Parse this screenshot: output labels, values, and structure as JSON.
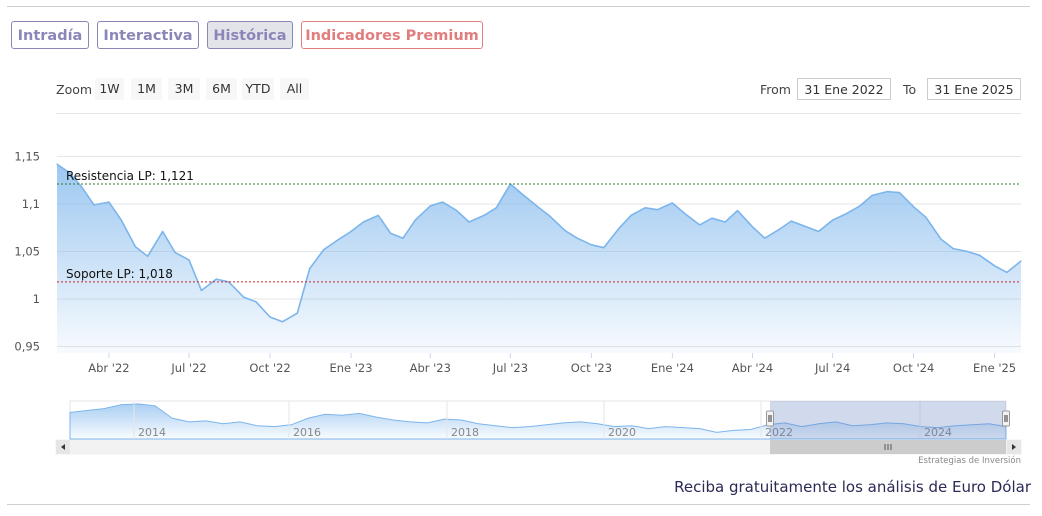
{
  "tabs": [
    {
      "label": "Intradía"
    },
    {
      "label": "Interactiva"
    },
    {
      "label": "Histórica"
    },
    {
      "label": "Indicadores Premium"
    }
  ],
  "zoom": {
    "label": "Zoom",
    "buttons": [
      "1W",
      "1M",
      "3M",
      "6M",
      "YTD",
      "All"
    ]
  },
  "range": {
    "from_label": "From",
    "from_value": "31 Ene 2022",
    "to_label": "To",
    "to_value": "31 Ene 2025"
  },
  "navigator": {
    "year_labels": [
      "2014",
      "2016",
      "2018",
      "2020",
      "2022",
      "2024"
    ]
  },
  "credit": "Estrategias de Inversión",
  "cta": "Reciba gratuitamente los análisis de Euro Dólar",
  "colors": {
    "series": "#7cb5ec",
    "resistance": "#2e7d32",
    "support": "#c62828",
    "tab_border": "#8a86b8",
    "premium": "#e07d7d"
  },
  "chart_data": {
    "type": "area",
    "title": "",
    "xlabel": "",
    "ylabel": "",
    "ylim": [
      0.95,
      1.15
    ],
    "y_ticks": [
      "1,15",
      "1,1",
      "1,05",
      "1",
      "0,95"
    ],
    "x_ticks": [
      "Abr '22",
      "Jul '22",
      "Oct '22",
      "Ene '23",
      "Abr '23",
      "Jul '23",
      "Oct '23",
      "Ene '24",
      "Abr '24",
      "Jul '24",
      "Oct '24",
      "Ene '25"
    ],
    "grid": true,
    "x": [
      "2022-02-01",
      "2022-02-15",
      "2022-03-01",
      "2022-03-15",
      "2022-04-01",
      "2022-04-15",
      "2022-05-01",
      "2022-05-15",
      "2022-06-01",
      "2022-06-15",
      "2022-07-01",
      "2022-07-15",
      "2022-08-01",
      "2022-08-15",
      "2022-09-01",
      "2022-09-15",
      "2022-10-01",
      "2022-10-15",
      "2022-11-01",
      "2022-11-15",
      "2022-12-01",
      "2022-12-15",
      "2023-01-01",
      "2023-01-15",
      "2023-02-01",
      "2023-02-15",
      "2023-03-01",
      "2023-03-15",
      "2023-04-01",
      "2023-04-15",
      "2023-05-01",
      "2023-05-15",
      "2023-06-01",
      "2023-06-15",
      "2023-07-01",
      "2023-07-15",
      "2023-08-01",
      "2023-08-15",
      "2023-09-01",
      "2023-09-15",
      "2023-10-01",
      "2023-10-15",
      "2023-11-01",
      "2023-11-15",
      "2023-12-01",
      "2023-12-15",
      "2024-01-01",
      "2024-01-15",
      "2024-02-01",
      "2024-02-15",
      "2024-03-01",
      "2024-03-15",
      "2024-04-01",
      "2024-04-15",
      "2024-05-01",
      "2024-05-15",
      "2024-06-01",
      "2024-06-15",
      "2024-07-01",
      "2024-07-15",
      "2024-08-01",
      "2024-08-15",
      "2024-09-01",
      "2024-09-15",
      "2024-10-01",
      "2024-10-15",
      "2024-11-01",
      "2024-11-15",
      "2024-12-01",
      "2024-12-15",
      "2025-01-01",
      "2025-01-15",
      "2025-01-31"
    ],
    "series": [
      {
        "values": [
          1.142,
          1.133,
          1.118,
          1.099,
          1.102,
          1.083,
          1.055,
          1.045,
          1.071,
          1.049,
          1.041,
          1.009,
          1.021,
          1.018,
          1.002,
          0.997,
          0.981,
          0.976,
          0.985,
          1.032,
          1.052,
          1.061,
          1.071,
          1.081,
          1.088,
          1.069,
          1.064,
          1.083,
          1.098,
          1.102,
          1.093,
          1.081,
          1.088,
          1.096,
          1.121,
          1.11,
          1.097,
          1.087,
          1.072,
          1.064,
          1.057,
          1.054,
          1.074,
          1.088,
          1.096,
          1.094,
          1.101,
          1.09,
          1.078,
          1.085,
          1.081,
          1.093,
          1.076,
          1.064,
          1.073,
          1.082,
          1.076,
          1.071,
          1.083,
          1.089,
          1.098,
          1.109,
          1.113,
          1.112,
          1.097,
          1.086,
          1.063,
          1.053,
          1.05,
          1.046,
          1.035,
          1.028,
          1.04
        ]
      }
    ],
    "annotations": [
      {
        "label": "Resistencia LP: 1,121",
        "value": 1.121,
        "style": "dotted"
      },
      {
        "label": "Soporte LP: 1,018",
        "value": 1.018,
        "style": "dotted"
      }
    ]
  }
}
